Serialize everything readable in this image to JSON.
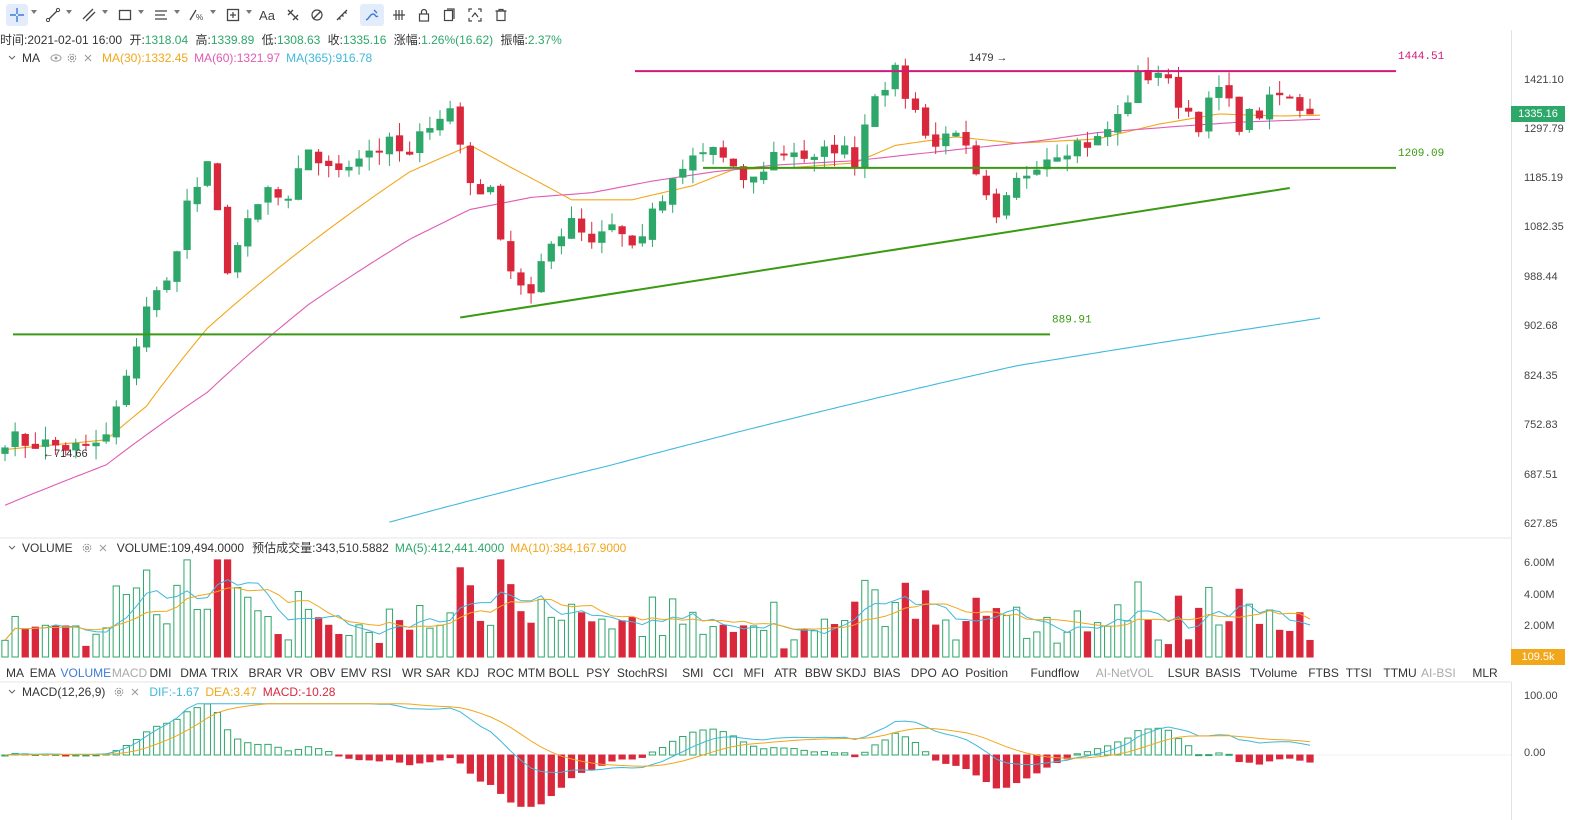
{
  "toolbar": {
    "tools": [
      "crosshair-icon",
      "trendline-icon",
      "multiline-icon",
      "rectangle-icon",
      "parallel-lines-icon",
      "fib-icon",
      "measure-icon",
      "text-icon",
      "pattern-icon",
      "magnet-icon",
      "ruler-icon",
      "draw-mode-icon",
      "grid-icon",
      "lock-icon",
      "layers-icon",
      "snapshot-icon",
      "trash-icon"
    ]
  },
  "info": {
    "time_label": "时间:",
    "time": "2021-02-01 16:00",
    "open_label": "开:",
    "open": "1318.04",
    "high_label": "高:",
    "high": "1339.89",
    "low_label": "低:",
    "low": "1308.63",
    "close_label": "收:",
    "close": "1335.16",
    "chg_label": "涨幅:",
    "chg": "1.26%(16.62)",
    "amp_label": "振幅:",
    "amp": "2.37%"
  },
  "ma_legend": {
    "name": "MA",
    "ma30": "MA(30):1332.45",
    "ma60": "MA(60):1321.97",
    "ma365": "MA(365):916.78"
  },
  "volume_legend": {
    "name": "VOLUME",
    "volume": "VOLUME:109,494.0000",
    "est": "预估成交量:343,510.5882",
    "ma5": "MA(5):412,441.4000",
    "ma10": "MA(10):384,167.9000"
  },
  "macd_legend": {
    "name": "MACD(12,26,9)",
    "dif": "DIF:-1.67",
    "dea": "DEA:3.47",
    "macd": "MACD:-10.28"
  },
  "colors": {
    "up": "#2ea76a",
    "down": "#d9283c",
    "ma30": "#f2a71b",
    "ma60": "#e05bb4",
    "ma365": "#3fb8dc",
    "resistance": "#d4187a",
    "support": "#3a9a12",
    "accent": "#3d7bd8"
  },
  "price_axis": [
    "1421.10",
    "1297.79",
    "1185.19",
    "1082.35",
    "988.44",
    "902.68",
    "824.35",
    "752.83",
    "687.51",
    "627.85"
  ],
  "price_badge": "1335.16",
  "volume_axis": [
    "6.00M",
    "4.00M",
    "2.00M"
  ],
  "volume_badge": "109.5k",
  "macd_axis": [
    "100.00",
    "0.00"
  ],
  "annotations": {
    "peak": "1479",
    "trough": "714.66",
    "resistance": "1444.51",
    "support_mid": "1209.09",
    "support_low": "889.91"
  },
  "indicator_tabs": [
    "MA",
    "EMA",
    "VOLUME",
    "MACD",
    "DMI",
    "DMA",
    "TRIX",
    "BRAR",
    "VR",
    "OBV",
    "EMV",
    "RSI",
    "WR",
    "SAR",
    "KDJ",
    "ROC",
    "MTM",
    "BOLL",
    "PSY",
    "StochRSI",
    "SMI",
    "CCI",
    "MFI",
    "ATR",
    "BBW",
    "SKDJ",
    "BIAS",
    "DPO",
    "AO",
    "Position",
    "Fundflow",
    "AI-NetVOL",
    "LSUR",
    "BASIS",
    "TVolume",
    "FTBS",
    "TTSI",
    "TTMU",
    "AI-BSI",
    "MLR"
  ],
  "chart_data": {
    "type": "candlestick",
    "series_count": 130,
    "anchors": [
      [
        0,
        735
      ],
      [
        4,
        727
      ],
      [
        8,
        720
      ],
      [
        10,
        735
      ],
      [
        12,
        815
      ],
      [
        14,
        940
      ],
      [
        16,
        975
      ],
      [
        18,
        1130
      ],
      [
        20,
        1205
      ],
      [
        22,
        1010
      ],
      [
        24,
        1085
      ],
      [
        26,
        1160
      ],
      [
        28,
        1125
      ],
      [
        30,
        1255
      ],
      [
        32,
        1200
      ],
      [
        34,
        1225
      ],
      [
        36,
        1250
      ],
      [
        38,
        1260
      ],
      [
        40,
        1230
      ],
      [
        42,
        1320
      ],
      [
        44,
        1345
      ],
      [
        46,
        1180
      ],
      [
        48,
        1150
      ],
      [
        50,
        1005
      ],
      [
        52,
        955
      ],
      [
        54,
        1050
      ],
      [
        56,
        1105
      ],
      [
        58,
        1060
      ],
      [
        60,
        1095
      ],
      [
        62,
        1045
      ],
      [
        64,
        1105
      ],
      [
        66,
        1170
      ],
      [
        68,
        1230
      ],
      [
        70,
        1255
      ],
      [
        72,
        1195
      ],
      [
        74,
        1180
      ],
      [
        76,
        1240
      ],
      [
        78,
        1250
      ],
      [
        80,
        1220
      ],
      [
        82,
        1260
      ],
      [
        84,
        1230
      ],
      [
        86,
        1395
      ],
      [
        88,
        1435
      ],
      [
        90,
        1340
      ],
      [
        92,
        1260
      ],
      [
        94,
        1305
      ],
      [
        96,
        1180
      ],
      [
        98,
        1090
      ],
      [
        100,
        1175
      ],
      [
        102,
        1225
      ],
      [
        104,
        1250
      ],
      [
        106,
        1265
      ],
      [
        108,
        1270
      ],
      [
        110,
        1325
      ],
      [
        112,
        1425
      ],
      [
        114,
        1445
      ],
      [
        116,
        1370
      ],
      [
        118,
        1315
      ],
      [
        120,
        1395
      ],
      [
        122,
        1315
      ],
      [
        124,
        1340
      ],
      [
        126,
        1380
      ],
      [
        128,
        1355
      ],
      [
        130,
        1335
      ]
    ],
    "ma_series": {
      "MA(30)": [
        [
          0,
          720
        ],
        [
          10,
          733
        ],
        [
          14,
          780
        ],
        [
          20,
          900
        ],
        [
          30,
          1050
        ],
        [
          40,
          1200
        ],
        [
          46,
          1260
        ],
        [
          50,
          1210
        ],
        [
          56,
          1140
        ],
        [
          62,
          1140
        ],
        [
          68,
          1170
        ],
        [
          72,
          1205
        ],
        [
          78,
          1210
        ],
        [
          84,
          1220
        ],
        [
          88,
          1260
        ],
        [
          94,
          1280
        ],
        [
          100,
          1265
        ],
        [
          108,
          1275
        ],
        [
          114,
          1310
        ],
        [
          120,
          1335
        ],
        [
          126,
          1330
        ],
        [
          130,
          1332
        ]
      ],
      "MA(60)": [
        [
          0,
          650
        ],
        [
          10,
          700
        ],
        [
          20,
          800
        ],
        [
          30,
          940
        ],
        [
          40,
          1060
        ],
        [
          46,
          1120
        ],
        [
          52,
          1145
        ],
        [
          58,
          1155
        ],
        [
          64,
          1180
        ],
        [
          70,
          1200
        ],
        [
          76,
          1215
        ],
        [
          84,
          1225
        ],
        [
          90,
          1240
        ],
        [
          96,
          1255
        ],
        [
          102,
          1270
        ],
        [
          108,
          1290
        ],
        [
          116,
          1305
        ],
        [
          122,
          1315
        ],
        [
          130,
          1322
        ]
      ],
      "MA(365)": [
        [
          38,
          630
        ],
        [
          60,
          700
        ],
        [
          80,
          770
        ],
        [
          100,
          840
        ],
        [
          130,
          917
        ]
      ]
    },
    "horizontal_lines": [
      {
        "label": "1444.51",
        "value": 1444.51
      },
      {
        "label": "1209.09",
        "value": 1209.09
      },
      {
        "label": "889.91",
        "value": 889.91
      }
    ],
    "trendline": {
      "from": [
        45,
        918
      ],
      "to": [
        127,
        1165
      ]
    },
    "volume": {
      "ylim": [
        0,
        6000000
      ],
      "latest": 109494
    },
    "macd": {
      "ylim": [
        -100,
        100
      ],
      "dif": -1.67,
      "dea": 3.47,
      "macd": -10.28
    }
  }
}
